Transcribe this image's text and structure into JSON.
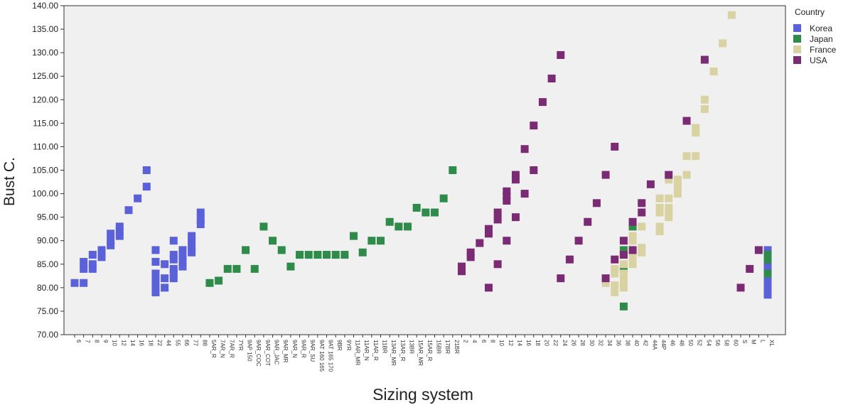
{
  "chart_data": {
    "type": "scatter",
    "title": "",
    "xlabel": "Sizing system",
    "ylabel": "Bust C.",
    "ylim": [
      70,
      140
    ],
    "yticks": [
      "70.00",
      "75.00",
      "80.00",
      "85.00",
      "90.00",
      "95.00",
      "100.00",
      "105.00",
      "110.00",
      "115.00",
      "120.00",
      "125.00",
      "130.00",
      "135.00",
      "140.00"
    ],
    "grid": false,
    "legend": {
      "title": "Country",
      "placement": "right"
    },
    "x_tick_labels": [
      "6",
      "7",
      "8",
      "9",
      "10",
      "12",
      "14",
      "16",
      "18",
      "22",
      "44",
      "55",
      "66",
      "77",
      "88",
      "5AR_R",
      "7AR_N",
      "7AR_R",
      "7YR",
      "9AP 150",
      "9AR_COC",
      "9AR_COT",
      "9AR_JAC",
      "9AR_MR",
      "9AR_N",
      "9AR_R",
      "9AR_SU",
      "9AT 160 165",
      "9AT 165 170",
      "9BR",
      "9YR",
      "11AR_MR",
      "11AR_N",
      "11AR_R",
      "11BR",
      "13AR_MR",
      "13AR_R",
      "13BR",
      "15AR_MR",
      "15AR_R",
      "15BR",
      "17BR",
      "21BR",
      "2",
      "4",
      "6",
      "8",
      "10",
      "12",
      "14",
      "16",
      "18",
      "20",
      "22",
      "24",
      "26",
      "28",
      "30",
      "32",
      "34",
      "36",
      "38",
      "40",
      "42",
      "44A",
      "44P",
      "46",
      "48",
      "50",
      "52",
      "54",
      "56",
      "58",
      "60",
      "S",
      "M",
      "L",
      "XL"
    ],
    "series": [
      {
        "name": "Korea",
        "color": "#5b61d8",
        "points": [
          {
            "x": "6",
            "y": 81
          },
          {
            "x": "7",
            "y": 81
          },
          {
            "x": "7",
            "y": 84
          },
          {
            "x": "7",
            "y": 85.5
          },
          {
            "x": "8",
            "y": 84
          },
          {
            "x": "8",
            "y": 85
          },
          {
            "x": "8",
            "y": 87
          },
          {
            "x": "9",
            "y": 86.5
          },
          {
            "x": "9",
            "y": 87.5
          },
          {
            "x": "9",
            "y": 88
          },
          {
            "x": "10",
            "y": 89
          },
          {
            "x": "10",
            "y": 90
          },
          {
            "x": "10",
            "y": 91.5
          },
          {
            "x": "12",
            "y": 91
          },
          {
            "x": "12",
            "y": 92
          },
          {
            "x": "12",
            "y": 93
          },
          {
            "x": "14",
            "y": 96.5
          },
          {
            "x": "16",
            "y": 99
          },
          {
            "x": "18",
            "y": 101.5
          },
          {
            "x": "18",
            "y": 105
          },
          {
            "x": "22",
            "y": 79
          },
          {
            "x": "22",
            "y": 80
          },
          {
            "x": "22",
            "y": 81
          },
          {
            "x": "22",
            "y": 82
          },
          {
            "x": "22",
            "y": 83
          },
          {
            "x": "22",
            "y": 85.5
          },
          {
            "x": "22",
            "y": 88
          },
          {
            "x": "44",
            "y": 80
          },
          {
            "x": "44",
            "y": 82
          },
          {
            "x": "44",
            "y": 85
          },
          {
            "x": "55",
            "y": 82
          },
          {
            "x": "55",
            "y": 83
          },
          {
            "x": "55",
            "y": 84
          },
          {
            "x": "55",
            "y": 86
          },
          {
            "x": "55",
            "y": 87
          },
          {
            "x": "55",
            "y": 90
          },
          {
            "x": "66",
            "y": 84.5
          },
          {
            "x": "66",
            "y": 85.5
          },
          {
            "x": "66",
            "y": 86.5
          },
          {
            "x": "66",
            "y": 88
          },
          {
            "x": "77",
            "y": 87.5
          },
          {
            "x": "77",
            "y": 88.5
          },
          {
            "x": "77",
            "y": 90
          },
          {
            "x": "77",
            "y": 91
          },
          {
            "x": "88",
            "y": 93.5
          },
          {
            "x": "88",
            "y": 94.5
          },
          {
            "x": "88",
            "y": 96
          },
          {
            "x": "XL",
            "y": 78.5
          },
          {
            "x": "XL",
            "y": 79.5
          },
          {
            "x": "XL",
            "y": 80.5
          },
          {
            "x": "XL",
            "y": 81.5
          },
          {
            "x": "XL",
            "y": 82.5
          },
          {
            "x": "XL",
            "y": 83.5
          },
          {
            "x": "XL",
            "y": 84.5
          },
          {
            "x": "XL",
            "y": 85.5
          },
          {
            "x": "XL",
            "y": 86.5
          },
          {
            "x": "XL",
            "y": 88
          }
        ]
      },
      {
        "name": "Japan",
        "color": "#2e8b4a",
        "points": [
          {
            "x": "5AR_R",
            "y": 81
          },
          {
            "x": "7AR_N",
            "y": 81.5
          },
          {
            "x": "7AR_R",
            "y": 84
          },
          {
            "x": "7YR",
            "y": 84
          },
          {
            "x": "9AP 150",
            "y": 88
          },
          {
            "x": "9AR_COC",
            "y": 84
          },
          {
            "x": "9AR_COT",
            "y": 93
          },
          {
            "x": "9AR_JAC",
            "y": 90
          },
          {
            "x": "9AR_MR",
            "y": 88
          },
          {
            "x": "9AR_N",
            "y": 84.5
          },
          {
            "x": "9AR_R",
            "y": 87
          },
          {
            "x": "9AR_SU",
            "y": 87
          },
          {
            "x": "9AT 160 165",
            "y": 87
          },
          {
            "x": "9AT 165 170",
            "y": 87
          },
          {
            "x": "9BR",
            "y": 87
          },
          {
            "x": "9YR",
            "y": 87
          },
          {
            "x": "11AR_MR",
            "y": 91
          },
          {
            "x": "11AR_N",
            "y": 87.5
          },
          {
            "x": "11AR_R",
            "y": 90
          },
          {
            "x": "11BR",
            "y": 90
          },
          {
            "x": "13AR_MR",
            "y": 94
          },
          {
            "x": "13AR_R",
            "y": 93
          },
          {
            "x": "13BR",
            "y": 93
          },
          {
            "x": "15AR_MR",
            "y": 97
          },
          {
            "x": "15AR_R",
            "y": 96
          },
          {
            "x": "15BR",
            "y": 96
          },
          {
            "x": "17BR",
            "y": 99
          },
          {
            "x": "21BR",
            "y": 105
          },
          {
            "x": "38",
            "y": 76
          },
          {
            "x": "38",
            "y": 84
          },
          {
            "x": "38",
            "y": 88
          },
          {
            "x": "40",
            "y": 93
          },
          {
            "x": "XL",
            "y": 83
          },
          {
            "x": "XL",
            "y": 86
          },
          {
            "x": "XL",
            "y": 87
          }
        ]
      },
      {
        "name": "France",
        "color": "#d9d3a3",
        "points": [
          {
            "x": "34",
            "y": 81
          },
          {
            "x": "36",
            "y": 79
          },
          {
            "x": "36",
            "y": 80.5
          },
          {
            "x": "36",
            "y": 83
          },
          {
            "x": "36",
            "y": 84
          },
          {
            "x": "38",
            "y": 80
          },
          {
            "x": "38",
            "y": 81.5
          },
          {
            "x": "38",
            "y": 83
          },
          {
            "x": "38",
            "y": 85
          },
          {
            "x": "40",
            "y": 85
          },
          {
            "x": "40",
            "y": 86.5
          },
          {
            "x": "40",
            "y": 88
          },
          {
            "x": "40",
            "y": 90
          },
          {
            "x": "40",
            "y": 91
          },
          {
            "x": "42",
            "y": 87.5
          },
          {
            "x": "42",
            "y": 88.5
          },
          {
            "x": "42",
            "y": 93
          },
          {
            "x": "44P",
            "y": 92
          },
          {
            "x": "44P",
            "y": 93
          },
          {
            "x": "44P",
            "y": 96
          },
          {
            "x": "44P",
            "y": 97
          },
          {
            "x": "44P",
            "y": 99
          },
          {
            "x": "46",
            "y": 95
          },
          {
            "x": "46",
            "y": 96
          },
          {
            "x": "46",
            "y": 97
          },
          {
            "x": "46",
            "y": 99
          },
          {
            "x": "46",
            "y": 103
          },
          {
            "x": "48",
            "y": 100
          },
          {
            "x": "48",
            "y": 101.5
          },
          {
            "x": "48",
            "y": 103
          },
          {
            "x": "50",
            "y": 104
          },
          {
            "x": "50",
            "y": 108
          },
          {
            "x": "52",
            "y": 108
          },
          {
            "x": "52",
            "y": 113
          },
          {
            "x": "52",
            "y": 114
          },
          {
            "x": "54",
            "y": 118
          },
          {
            "x": "54",
            "y": 120
          },
          {
            "x": "56",
            "y": 126
          },
          {
            "x": "58",
            "y": 132
          },
          {
            "x": "60",
            "y": 138
          }
        ]
      },
      {
        "name": "USA",
        "color": "#7b2a74",
        "points": [
          {
            "x": "2",
            "y": 83.5
          },
          {
            "x": "2",
            "y": 84.5
          },
          {
            "x": "4",
            "y": 86.5
          },
          {
            "x": "4",
            "y": 87.5
          },
          {
            "x": "6",
            "y": 89.5
          },
          {
            "x": "8",
            "y": 80
          },
          {
            "x": "8",
            "y": 91.5
          },
          {
            "x": "8",
            "y": 92.5
          },
          {
            "x": "10",
            "y": 85
          },
          {
            "x": "10",
            "y": 94.5
          },
          {
            "x": "10",
            "y": 96
          },
          {
            "x": "12",
            "y": 90
          },
          {
            "x": "12",
            "y": 98.5
          },
          {
            "x": "12",
            "y": 99.5
          },
          {
            "x": "12",
            "y": 100.5
          },
          {
            "x": "14",
            "y": 95
          },
          {
            "x": "14",
            "y": 103
          },
          {
            "x": "14",
            "y": 104
          },
          {
            "x": "16",
            "y": 100
          },
          {
            "x": "16",
            "y": 109.5
          },
          {
            "x": "18",
            "y": 105
          },
          {
            "x": "18",
            "y": 114.5
          },
          {
            "x": "20",
            "y": 119.5
          },
          {
            "x": "22",
            "y": 124.5
          },
          {
            "x": "24",
            "y": 82
          },
          {
            "x": "24",
            "y": 129.5
          },
          {
            "x": "26",
            "y": 86
          },
          {
            "x": "28",
            "y": 90
          },
          {
            "x": "30",
            "y": 94
          },
          {
            "x": "32",
            "y": 98
          },
          {
            "x": "34",
            "y": 82
          },
          {
            "x": "34",
            "y": 104
          },
          {
            "x": "36",
            "y": 86
          },
          {
            "x": "36",
            "y": 110
          },
          {
            "x": "38",
            "y": 87
          },
          {
            "x": "38",
            "y": 90
          },
          {
            "x": "40",
            "y": 88
          },
          {
            "x": "40",
            "y": 94
          },
          {
            "x": "42",
            "y": 96
          },
          {
            "x": "42",
            "y": 98
          },
          {
            "x": "44A",
            "y": 102
          },
          {
            "x": "46",
            "y": 104
          },
          {
            "x": "50",
            "y": 115.5
          },
          {
            "x": "54",
            "y": 128.5
          },
          {
            "x": "S",
            "y": 80
          },
          {
            "x": "M",
            "y": 84
          },
          {
            "x": "L",
            "y": 88
          }
        ]
      }
    ]
  }
}
